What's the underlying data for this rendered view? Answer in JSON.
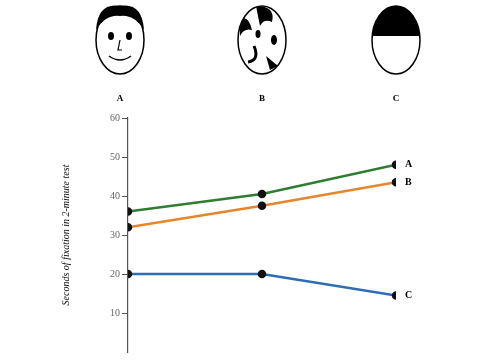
{
  "chart_data": {
    "type": "line",
    "y_label": "Seconds of fixation in 2-minute test",
    "annotations": [
      "A",
      "B",
      "C"
    ],
    "categories": [
      null,
      null,
      null
    ],
    "series": [
      {
        "name": "A",
        "color": "#2f7d32",
        "values": [
          36,
          40.5,
          48
        ]
      },
      {
        "name": "B",
        "color": "#e5862a",
        "values": [
          32,
          37.5,
          43.5
        ]
      },
      {
        "name": "C",
        "color": "#2d6db5",
        "values": [
          20,
          20,
          14.5
        ]
      }
    ],
    "ylim": [
      0,
      60
    ],
    "yticks": [
      10,
      20,
      30,
      40,
      50,
      60
    ],
    "grid": false,
    "tick_labels": "y",
    "marker": "circle"
  }
}
